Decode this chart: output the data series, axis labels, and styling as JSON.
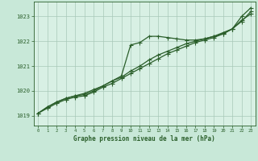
{
  "title": "Graphe pression niveau de la mer (hPa)",
  "background_color": "#c8e8d8",
  "plot_bg_color": "#d8f0e4",
  "grid_color": "#a8c8b8",
  "line_color": "#2a5e2a",
  "xlim": [
    -0.5,
    23.5
  ],
  "ylim": [
    1018.6,
    1023.6
  ],
  "yticks": [
    1019,
    1020,
    1021,
    1022,
    1023
  ],
  "xticks": [
    0,
    1,
    2,
    3,
    4,
    5,
    6,
    7,
    8,
    9,
    10,
    11,
    12,
    13,
    14,
    15,
    16,
    17,
    18,
    19,
    20,
    21,
    22,
    23
  ],
  "series1_x": [
    0,
    1,
    2,
    3,
    4,
    5,
    6,
    7,
    8,
    9,
    10,
    11,
    12,
    13,
    14,
    15,
    16,
    17,
    18,
    19,
    20,
    21,
    22,
    23
  ],
  "series1_y": [
    1019.1,
    1019.35,
    1019.55,
    1019.7,
    1019.8,
    1019.9,
    1020.05,
    1020.2,
    1020.4,
    1020.6,
    1021.85,
    1021.95,
    1022.2,
    1022.2,
    1022.15,
    1022.1,
    1022.05,
    1022.05,
    1022.1,
    1022.2,
    1022.3,
    1022.5,
    1023.0,
    1023.35
  ],
  "series2_x": [
    0,
    1,
    2,
    3,
    4,
    5,
    6,
    7,
    8,
    9,
    10,
    11,
    12,
    13,
    14,
    15,
    16,
    17,
    18,
    19,
    20,
    21,
    22,
    23
  ],
  "series2_y": [
    1019.1,
    1019.35,
    1019.55,
    1019.7,
    1019.8,
    1019.85,
    1020.0,
    1020.2,
    1020.4,
    1020.55,
    1020.8,
    1021.0,
    1021.25,
    1021.45,
    1021.6,
    1021.75,
    1021.9,
    1022.0,
    1022.1,
    1022.2,
    1022.35,
    1022.5,
    1022.85,
    1023.1
  ],
  "series3_x": [
    0,
    1,
    2,
    3,
    4,
    5,
    6,
    7,
    8,
    9,
    10,
    11,
    12,
    13,
    14,
    15,
    16,
    17,
    18,
    19,
    20,
    21,
    22,
    23
  ],
  "series3_y": [
    1019.1,
    1019.3,
    1019.5,
    1019.65,
    1019.75,
    1019.8,
    1019.95,
    1020.15,
    1020.3,
    1020.5,
    1020.7,
    1020.9,
    1021.1,
    1021.3,
    1021.5,
    1021.65,
    1021.8,
    1021.95,
    1022.05,
    1022.15,
    1022.3,
    1022.5,
    1022.8,
    1023.2
  ]
}
